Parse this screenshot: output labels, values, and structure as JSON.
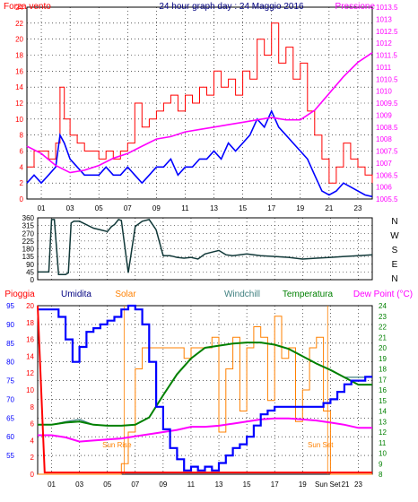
{
  "chart_data": [
    {
      "type": "line",
      "title": "24 hour graph day : 24 Maggio 2016",
      "left_axis_label": "Forza vento",
      "right_axis_label": "Pressione",
      "x_ticks": [
        "01",
        "03",
        "05",
        "07",
        "09",
        "11",
        "13",
        "15",
        "17",
        "19",
        "21",
        "23"
      ],
      "x_range_hours": [
        0,
        24
      ],
      "ylim_left": [
        0,
        24
      ],
      "y_ticks_left": [
        "0",
        "2",
        "4",
        "6",
        "8",
        "10",
        "12",
        "14",
        "16",
        "18",
        "20",
        "22",
        "24"
      ],
      "ylim_right": [
        1005.5,
        1013.5
      ],
      "y_ticks_right": [
        "1005.5",
        "1006",
        "1006.5",
        "1007",
        "1007.5",
        "1008",
        "1008.5",
        "1009",
        "1009.5",
        "1010",
        "1010.5",
        "1011",
        "1011.5",
        "1012",
        "1012.5",
        "1013",
        "1013.5"
      ],
      "grid": true,
      "series": [
        {
          "name": "Forza vento",
          "color": "#ff0000",
          "kind": "gust",
          "axis": "left",
          "x": [
            0,
            0.5,
            1,
            1.5,
            2,
            2.3,
            2.6,
            3,
            3.5,
            4,
            4.5,
            5,
            5.5,
            6,
            6.5,
            7,
            7.5,
            8,
            8.5,
            9,
            9.5,
            10,
            10.5,
            11,
            11.5,
            12,
            12.5,
            13,
            13.5,
            14,
            14.5,
            15,
            15.5,
            16,
            16.5,
            17,
            17.5,
            18,
            18.5,
            19,
            19.5,
            20,
            20.5,
            21,
            21.5,
            22,
            22.5,
            23,
            23.5,
            24
          ],
          "values": [
            4,
            6,
            6,
            5,
            7,
            14,
            10,
            8,
            7,
            6,
            6,
            5,
            6,
            5,
            6,
            7,
            12,
            9,
            10,
            11,
            12,
            13,
            11,
            13,
            12,
            14,
            13,
            16,
            14,
            15,
            13,
            16,
            15,
            20,
            18,
            22,
            17,
            19,
            15,
            17,
            11,
            8,
            5,
            2,
            4,
            7,
            5,
            4,
            3,
            2
          ]
        },
        {
          "color": "#0000ff",
          "kind": "average",
          "axis": "left",
          "x": [
            0,
            0.5,
            1,
            1.5,
            2,
            2.3,
            2.6,
            3,
            3.5,
            4,
            4.5,
            5,
            5.5,
            6,
            6.5,
            7,
            7.5,
            8,
            8.5,
            9,
            9.5,
            10,
            10.5,
            11,
            11.5,
            12,
            12.5,
            13,
            13.5,
            14,
            14.5,
            15,
            15.5,
            16,
            16.5,
            17,
            17.5,
            18,
            18.5,
            19,
            19.5,
            20,
            20.5,
            21,
            21.5,
            22,
            22.5,
            23,
            23.5,
            24
          ],
          "values": [
            2,
            3,
            2,
            3,
            4,
            8,
            7,
            5,
            4,
            3,
            3,
            3,
            4,
            3,
            3,
            4,
            3,
            2,
            3,
            4,
            4,
            5,
            3,
            4,
            4,
            5,
            5,
            6,
            5,
            7,
            6,
            7,
            8,
            10,
            9,
            11,
            9,
            8,
            7,
            6,
            5,
            3,
            1,
            0.5,
            1,
            2,
            1.5,
            1,
            0.5,
            0.3
          ]
        },
        {
          "name": "Pressione",
          "color": "#ff00ff",
          "axis": "right",
          "x": [
            0,
            1,
            2,
            3,
            4,
            5,
            6,
            7,
            8,
            9,
            10,
            11,
            12,
            13,
            14,
            15,
            16,
            17,
            18,
            19,
            20,
            21,
            22,
            23,
            24
          ],
          "values": [
            1007.7,
            1007.4,
            1006.9,
            1006.6,
            1006.7,
            1006.9,
            1007.2,
            1007.4,
            1007.7,
            1008.0,
            1008.1,
            1008.3,
            1008.4,
            1008.5,
            1008.6,
            1008.7,
            1008.8,
            1008.9,
            1008.8,
            1008.8,
            1009.2,
            1009.9,
            1010.6,
            1011.2,
            1011.6
          ]
        }
      ]
    },
    {
      "type": "line",
      "y_ticks": [
        "0",
        "45",
        "90",
        "135",
        "180",
        "225",
        "270",
        "315",
        "360"
      ],
      "ylim": [
        0,
        360
      ],
      "compass_labels": [
        "N",
        "W",
        "S",
        "E",
        "N"
      ],
      "x_range_hours": [
        0,
        24
      ],
      "grid": true,
      "series": [
        {
          "color": "#103838",
          "x": [
            0,
            0.6,
            0.8,
            1.0,
            1.2,
            1.5,
            2.0,
            2.2,
            2.4,
            2.6,
            3,
            3.5,
            4,
            4.5,
            5,
            5.3,
            5.5,
            5.8,
            6,
            6.5,
            7,
            7.5,
            8,
            8.5,
            9,
            9.5,
            10,
            10.5,
            11,
            11.5,
            12,
            12.5,
            13,
            13.5,
            14,
            15,
            16,
            17,
            18,
            19,
            20,
            21,
            22,
            23,
            24
          ],
          "values": [
            45,
            45,
            45,
            350,
            350,
            30,
            30,
            40,
            330,
            340,
            340,
            320,
            300,
            290,
            280,
            310,
            320,
            350,
            345,
            40,
            310,
            340,
            350,
            290,
            140,
            140,
            130,
            125,
            130,
            120,
            150,
            160,
            170,
            145,
            140,
            150,
            140,
            135,
            130,
            120,
            125,
            130,
            135,
            140,
            145
          ]
        }
      ]
    },
    {
      "type": "line",
      "legend": [
        "Pioggia",
        "Umidita",
        "Solar",
        "Windchill",
        "Temperatura",
        "Dew Point (°C)"
      ],
      "x_ticks": [
        "01",
        "03",
        "05",
        "07",
        "09",
        "11",
        "13",
        "15",
        "17",
        "19",
        "Sun Set",
        "21",
        "23"
      ],
      "x_range_hours": [
        0,
        24
      ],
      "ylim_humidity": [
        50,
        95
      ],
      "y_ticks_humidity": [
        "55",
        "60",
        "65",
        "70",
        "75",
        "80",
        "85",
        "90",
        "95"
      ],
      "ylim_temperature": [
        8,
        24
      ],
      "y_ticks_temperature": [
        "8",
        "9",
        "10",
        "11",
        "12",
        "13",
        "14",
        "15",
        "16",
        "17",
        "18",
        "19",
        "20",
        "21",
        "22",
        "23",
        "24"
      ],
      "ylim_rain": [
        0,
        20
      ],
      "y_ticks_rain": [
        "0",
        "2",
        "4",
        "6",
        "8",
        "10",
        "12",
        "14",
        "16",
        "18",
        "20"
      ],
      "annotations": [
        {
          "text": "Sun Rise",
          "x": 6.2
        },
        {
          "text": "Sun Set",
          "x": 20.8
        }
      ],
      "grid": true,
      "series": [
        {
          "name": "Pioggia",
          "color": "#ff0000",
          "axis": "rain",
          "x": [
            0,
            0.5,
            24
          ],
          "values": [
            20,
            0.2,
            0.2
          ]
        },
        {
          "name": "Umidita",
          "color": "#0000ff",
          "axis": "humidity",
          "x": [
            0,
            1,
            1.5,
            2,
            2.5,
            3,
            3.5,
            4,
            4.5,
            5,
            5.5,
            6,
            6.5,
            7,
            7.5,
            8,
            8.5,
            9,
            9.5,
            10,
            10.5,
            11,
            11.5,
            12,
            12.5,
            13,
            13.5,
            14,
            14.5,
            15,
            15.5,
            16,
            16.5,
            17,
            17.5,
            18,
            18.5,
            19,
            19.5,
            20,
            20.5,
            21,
            21.5,
            22,
            22.5,
            23,
            23.5,
            24
          ],
          "values": [
            94,
            94,
            92,
            86,
            80,
            84,
            88,
            89,
            90,
            91,
            92,
            94,
            95,
            94,
            90,
            80,
            68,
            62,
            57,
            54,
            51,
            52,
            51,
            52,
            51,
            53,
            55,
            57,
            58,
            60,
            63,
            66,
            67,
            68,
            68,
            68,
            68,
            68,
            68,
            68,
            69,
            70,
            72,
            74,
            75,
            75,
            76,
            76
          ]
        },
        {
          "name": "Solar",
          "color": "#ff8000",
          "axis": "temperature",
          "x": [
            0,
            5.5,
            6,
            6.5,
            7,
            7.5,
            8,
            8.5,
            9,
            9.5,
            10,
            10.5,
            11,
            11.5,
            12,
            12.5,
            13,
            13.5,
            14,
            14.5,
            15,
            15.5,
            16,
            16.5,
            17,
            17.5,
            18,
            18.5,
            19,
            19.5,
            20,
            20.5,
            21,
            21.5,
            22,
            24
          ],
          "values": [
            8,
            8,
            9,
            12,
            18,
            20,
            20,
            20,
            20,
            20,
            20,
            19,
            20,
            20,
            20,
            21,
            12,
            18,
            21,
            14,
            20,
            22,
            21,
            15,
            23,
            19,
            20,
            13,
            16,
            20,
            21,
            14,
            8,
            8,
            8,
            8
          ]
        },
        {
          "name": "Windchill",
          "color": "#408080",
          "axis": "temperature",
          "x": [
            0,
            1,
            2,
            3,
            4,
            5,
            6,
            7,
            8,
            9,
            10,
            11,
            12,
            13,
            14,
            15,
            16,
            17,
            18,
            19,
            20,
            21,
            22,
            23,
            24
          ],
          "values": [
            12.7,
            12.7,
            13.0,
            13.2,
            12.7,
            12.6,
            12.6,
            12.7,
            13.4,
            15.5,
            17.5,
            19.0,
            20.0,
            20.2,
            20.4,
            20.5,
            20.5,
            20.3,
            19.9,
            19.2,
            18.5,
            17.9,
            17.2,
            17.2,
            17.2
          ]
        },
        {
          "name": "Temperatura",
          "color": "#008000",
          "axis": "temperature",
          "x": [
            0,
            1,
            2,
            3,
            4,
            5,
            6,
            7,
            8,
            9,
            10,
            11,
            12,
            13,
            14,
            15,
            16,
            17,
            18,
            19,
            20,
            21,
            22,
            23,
            24
          ],
          "values": [
            12.7,
            12.7,
            12.9,
            13.0,
            12.7,
            12.6,
            12.6,
            12.7,
            13.4,
            15.5,
            17.5,
            19.0,
            20.0,
            20.2,
            20.4,
            20.5,
            20.5,
            20.3,
            19.9,
            19.2,
            18.5,
            17.9,
            17.2,
            16.5,
            16.5
          ]
        },
        {
          "name": "Dew Point (°C)",
          "color": "#ff00ff",
          "axis": "temperature",
          "x": [
            0,
            1,
            2,
            3,
            4,
            5,
            6,
            7,
            8,
            9,
            10,
            11,
            12,
            13,
            14,
            15,
            16,
            17,
            18,
            19,
            20,
            21,
            22,
            23,
            24
          ],
          "values": [
            11.7,
            11.7,
            11.5,
            11.1,
            11.2,
            11.3,
            11.4,
            11.6,
            11.8,
            12.0,
            12.2,
            12.5,
            12.5,
            12.6,
            12.8,
            13.0,
            13.2,
            13.3,
            13.3,
            13.2,
            13.1,
            12.9,
            12.7,
            12.4,
            12.4
          ]
        }
      ]
    }
  ]
}
